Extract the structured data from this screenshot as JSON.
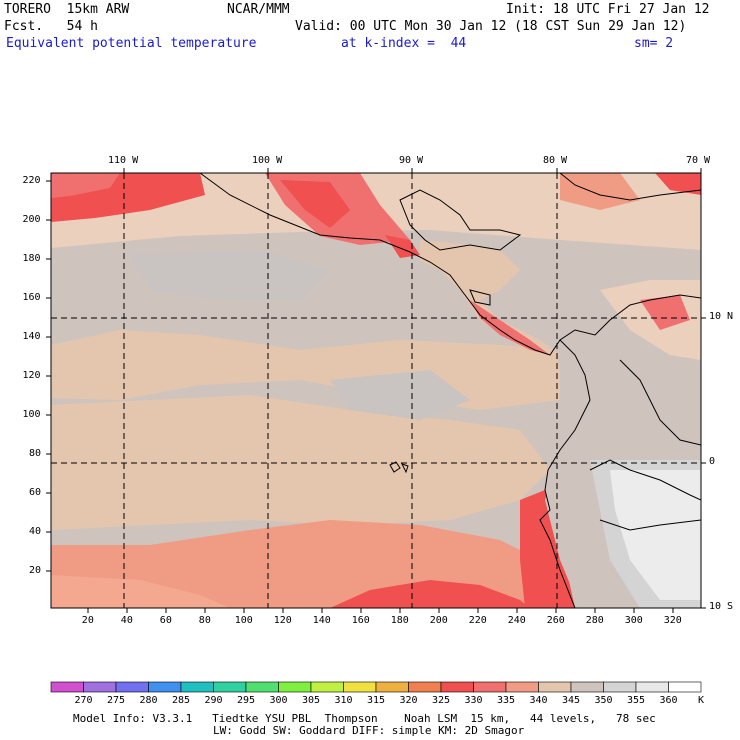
{
  "header": {
    "model": "TORERO  15km ARW",
    "org": "NCAR/MMM",
    "init": "Init: 18 UTC Fri 27 Jan 12",
    "fcst": "Fcst.   54 h",
    "valid": "Valid: 00 UTC Mon 30 Jan 12 (18 CST Sun 29 Jan 12)",
    "field": "Equivalent potential temperature",
    "level": "at k-index =  44",
    "smooth": "sm= 2"
  },
  "map": {
    "top_lon_labels": [
      "110 W",
      "100 W",
      "90 W",
      "80 W",
      "70 W"
    ],
    "right_lat_labels": [
      "10 N",
      "0",
      "10 S"
    ],
    "left_y_ticks": [
      "220",
      "200",
      "180",
      "160",
      "140",
      "120",
      "100",
      "80",
      "60",
      "40",
      "20"
    ],
    "bottom_x_ticks": [
      "20",
      "40",
      "60",
      "80",
      "100",
      "120",
      "140",
      "160",
      "180",
      "200",
      "220",
      "240",
      "260",
      "280",
      "300",
      "320"
    ]
  },
  "colorbar": {
    "unit": "K",
    "labels": [
      "270",
      "275",
      "280",
      "285",
      "290",
      "295",
      "300",
      "305",
      "310",
      "315",
      "320",
      "325",
      "330",
      "335",
      "340",
      "345",
      "350",
      "355",
      "360"
    ],
    "colors": [
      "#d050d0",
      "#a070e0",
      "#7070f0",
      "#4090f0",
      "#20c0c0",
      "#30d0a0",
      "#50e070",
      "#80f040",
      "#c0f040",
      "#f0e040",
      "#f0b040",
      "#f08050",
      "#f05050",
      "#f07070",
      "#f09c84",
      "#e4c6ae",
      "#cfc3bd",
      "#d4d4d4",
      "#e8e8e8",
      "#ffffff"
    ]
  },
  "footer": {
    "line1": "Model Info: V3.3.1   Tiedtke YSU PBL  Thompson    Noah LSM  15 km,   44 levels,   78 sec",
    "line2": "LW: Godd SW: Goddard DIFF: simple KM: 2D Smagor"
  }
}
